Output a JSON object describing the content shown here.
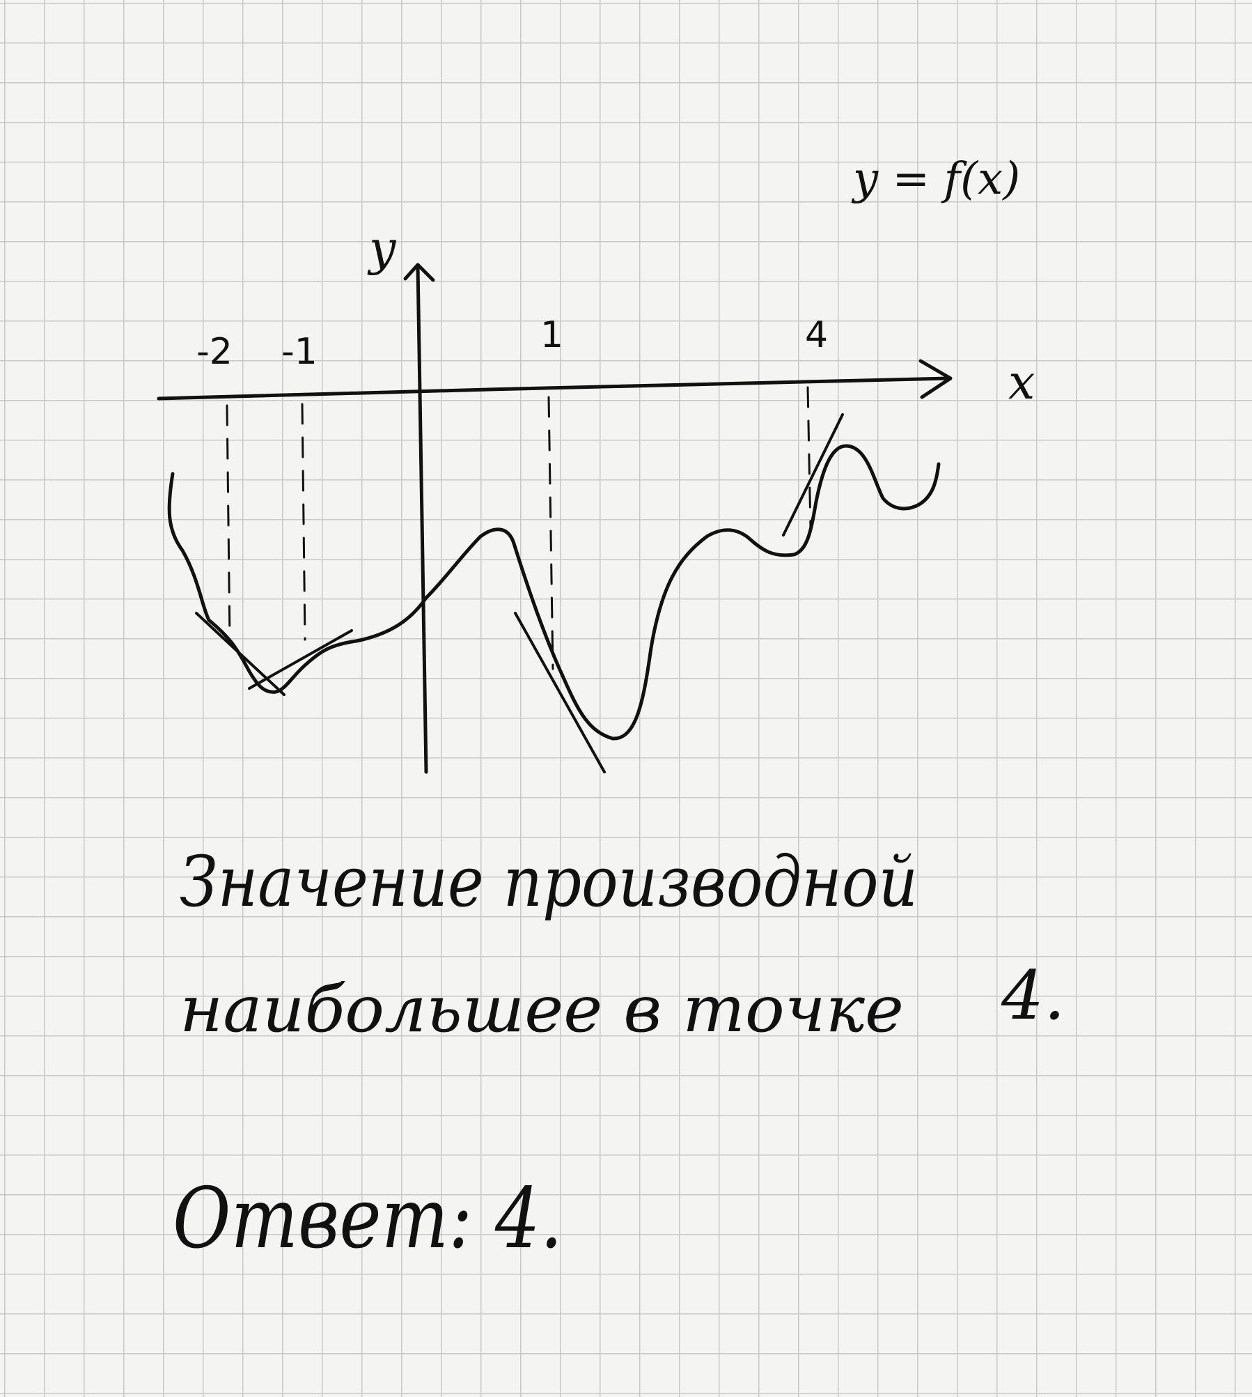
{
  "graph": {
    "function_label": "y = f(x)",
    "y_axis_label": "y",
    "x_axis_label": "x",
    "x_ticks": [
      {
        "id": "tick-minus-2",
        "text": "-2"
      },
      {
        "id": "tick-minus-1",
        "text": "-1"
      },
      {
        "id": "tick-1",
        "text": "1"
      },
      {
        "id": "tick-4",
        "text": "4"
      }
    ]
  },
  "text": {
    "line1": "Значение производной",
    "line2": "наибольшее в точке",
    "line2_value": "4.",
    "answer": "Ответ: 4."
  },
  "colors": {
    "ink": "#111111",
    "paper": "#f4f4f2",
    "grid": "#c9c9c9"
  }
}
